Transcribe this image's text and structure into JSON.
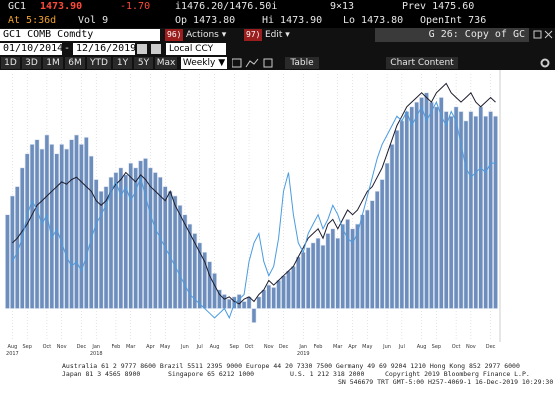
{
  "header": {
    "ticker": "GC1",
    "last": "1473.90",
    "change": "-1.70",
    "bid_ask": "i1476.20/1476.50i",
    "size": "9×13",
    "prev": "Prev 1475.60",
    "at": "At 5:36d",
    "vol": "Vol 9",
    "open": "Op 1473.80",
    "high": "Hi 1473.90",
    "low": "Lo 1473.80",
    "open_interest": "OpenInt 736"
  },
  "toolbar": {
    "security": "GC1 COMB Comdty",
    "actions_num": "96)",
    "actions": "Actions ▾",
    "edit_num": "97)",
    "edit": "Edit ▾",
    "template": "G 26: Copy of GC",
    "start_date": "01/10/2014",
    "date_sep": "-",
    "end_date": "12/16/2019",
    "currency": "Local CCY",
    "periods": [
      "1D",
      "3D",
      "1M",
      "6M",
      "YTD",
      "1Y",
      "5Y",
      "Max"
    ],
    "frequency": "Weekly ▼",
    "table": "Table",
    "chart_content": "Chart Content"
  },
  "chart_data": {
    "type": "bar-line",
    "categories": [
      null,
      "Aug",
      null,
      null,
      "Sep",
      null,
      null,
      null,
      "Oct",
      null,
      null,
      "Nov",
      null,
      null,
      null,
      "Dec",
      null,
      null,
      "Jan",
      null,
      null,
      null,
      "Feb",
      null,
      null,
      "Mar",
      null,
      null,
      null,
      "Apr",
      null,
      null,
      "May",
      null,
      null,
      null,
      "Jun",
      null,
      null,
      "Jul",
      null,
      null,
      "Aug",
      null,
      null,
      null,
      "Sep",
      null,
      null,
      "Oct",
      null,
      null,
      null,
      "Nov",
      null,
      null,
      "Dec",
      null,
      null,
      null,
      "Jan",
      null,
      null,
      "Feb",
      null,
      null,
      null,
      "Mar",
      null,
      null,
      "Apr",
      null,
      null,
      "May",
      null,
      null,
      null,
      "Jun",
      null,
      null,
      "Jul",
      null,
      null,
      null,
      "Aug",
      null,
      null,
      "Sep",
      null,
      null,
      null,
      "Oct",
      null,
      null,
      "Nov",
      null,
      null,
      null,
      "Dec",
      null
    ],
    "year_ticks": [
      {
        "value": 1,
        "label": "2017"
      },
      {
        "value": 18,
        "label": "2018"
      },
      {
        "value": 60,
        "label": "2019"
      }
    ],
    "ylim": [
      -10,
      100
    ],
    "grid": true,
    "bar_color": "#6d8dbd",
    "values": [
      40,
      48,
      52,
      60,
      66,
      70,
      72,
      68,
      74,
      70,
      66,
      70,
      68,
      72,
      74,
      70,
      73,
      65,
      55,
      50,
      52,
      56,
      58,
      60,
      57,
      62,
      60,
      63,
      64,
      60,
      58,
      56,
      52,
      50,
      48,
      44,
      40,
      36,
      32,
      28,
      24,
      20,
      15,
      8,
      6,
      4,
      5,
      6,
      3,
      5,
      -6,
      5,
      8,
      10,
      9,
      12,
      14,
      16,
      18,
      22,
      24,
      26,
      28,
      30,
      27,
      32,
      34,
      30,
      36,
      38,
      34,
      36,
      40,
      42,
      46,
      50,
      55,
      62,
      70,
      76,
      80,
      84,
      86,
      88,
      90,
      92,
      88,
      86,
      90,
      84,
      82,
      86,
      84,
      80,
      84,
      82,
      86,
      82,
      84,
      82
    ],
    "lines": [
      {
        "color": "#1c1c2c",
        "values": [
          null,
          28,
          30,
          33,
          36,
          40,
          44,
          46,
          48,
          50,
          52,
          54,
          53,
          55,
          56,
          54,
          52,
          50,
          46,
          44,
          46,
          50,
          53,
          55,
          58,
          56,
          54,
          57,
          55,
          52,
          50,
          48,
          46,
          50,
          44,
          40,
          36,
          32,
          28,
          24,
          20,
          14,
          10,
          6,
          4,
          5,
          3,
          2,
          4,
          5,
          3,
          6,
          8,
          12,
          10,
          12,
          14,
          16,
          18,
          22,
          26,
          30,
          32,
          34,
          30,
          36,
          38,
          34,
          38,
          42,
          40,
          42,
          46,
          50,
          52,
          56,
          60,
          66,
          72,
          78,
          82,
          86,
          88,
          90,
          92,
          90,
          88,
          92,
          94,
          96,
          92,
          90,
          88,
          90,
          92,
          88,
          86,
          88,
          90,
          88
        ]
      },
      {
        "color": "#4a9be0",
        "values": [
          null,
          20,
          24,
          30,
          40,
          46,
          42,
          36,
          40,
          30,
          34,
          28,
          22,
          18,
          20,
          16,
          22,
          30,
          36,
          40,
          44,
          50,
          54,
          48,
          52,
          46,
          50,
          56,
          48,
          40,
          34,
          30,
          26,
          22,
          18,
          14,
          10,
          6,
          4,
          2,
          0,
          -2,
          -4,
          -2,
          0,
          -4,
          2,
          4,
          6,
          20,
          28,
          32,
          20,
          14,
          18,
          30,
          50,
          58,
          40,
          28,
          24,
          32,
          36,
          40,
          34,
          38,
          44,
          40,
          34,
          30,
          28,
          32,
          40,
          48,
          56,
          64,
          70,
          74,
          78,
          82,
          80,
          84,
          78,
          82,
          86,
          80,
          84,
          88,
          82,
          78,
          84,
          80,
          70,
          60,
          56,
          58,
          60,
          58,
          62,
          62
        ]
      }
    ]
  },
  "footer": {
    "line1": "Australia 61 2 9777 8600 Brazil 5511 2395 9000 Europe 44 20 7330 7500 Germany 49 69 9204 1210 Hong Kong 852 2977 6000",
    "line2a": "Japan 81 3 4565 8900",
    "line2b": "Singapore 65 6212 1000",
    "line2c": "U.S. 1 212 318 2000",
    "line2d": "Copyright 2019 Bloomberg Finance L.P.",
    "line3": "SN 546679 TRT  GMT-5:00 H257-4069-1 16-Dec-2019 10:29:30"
  }
}
